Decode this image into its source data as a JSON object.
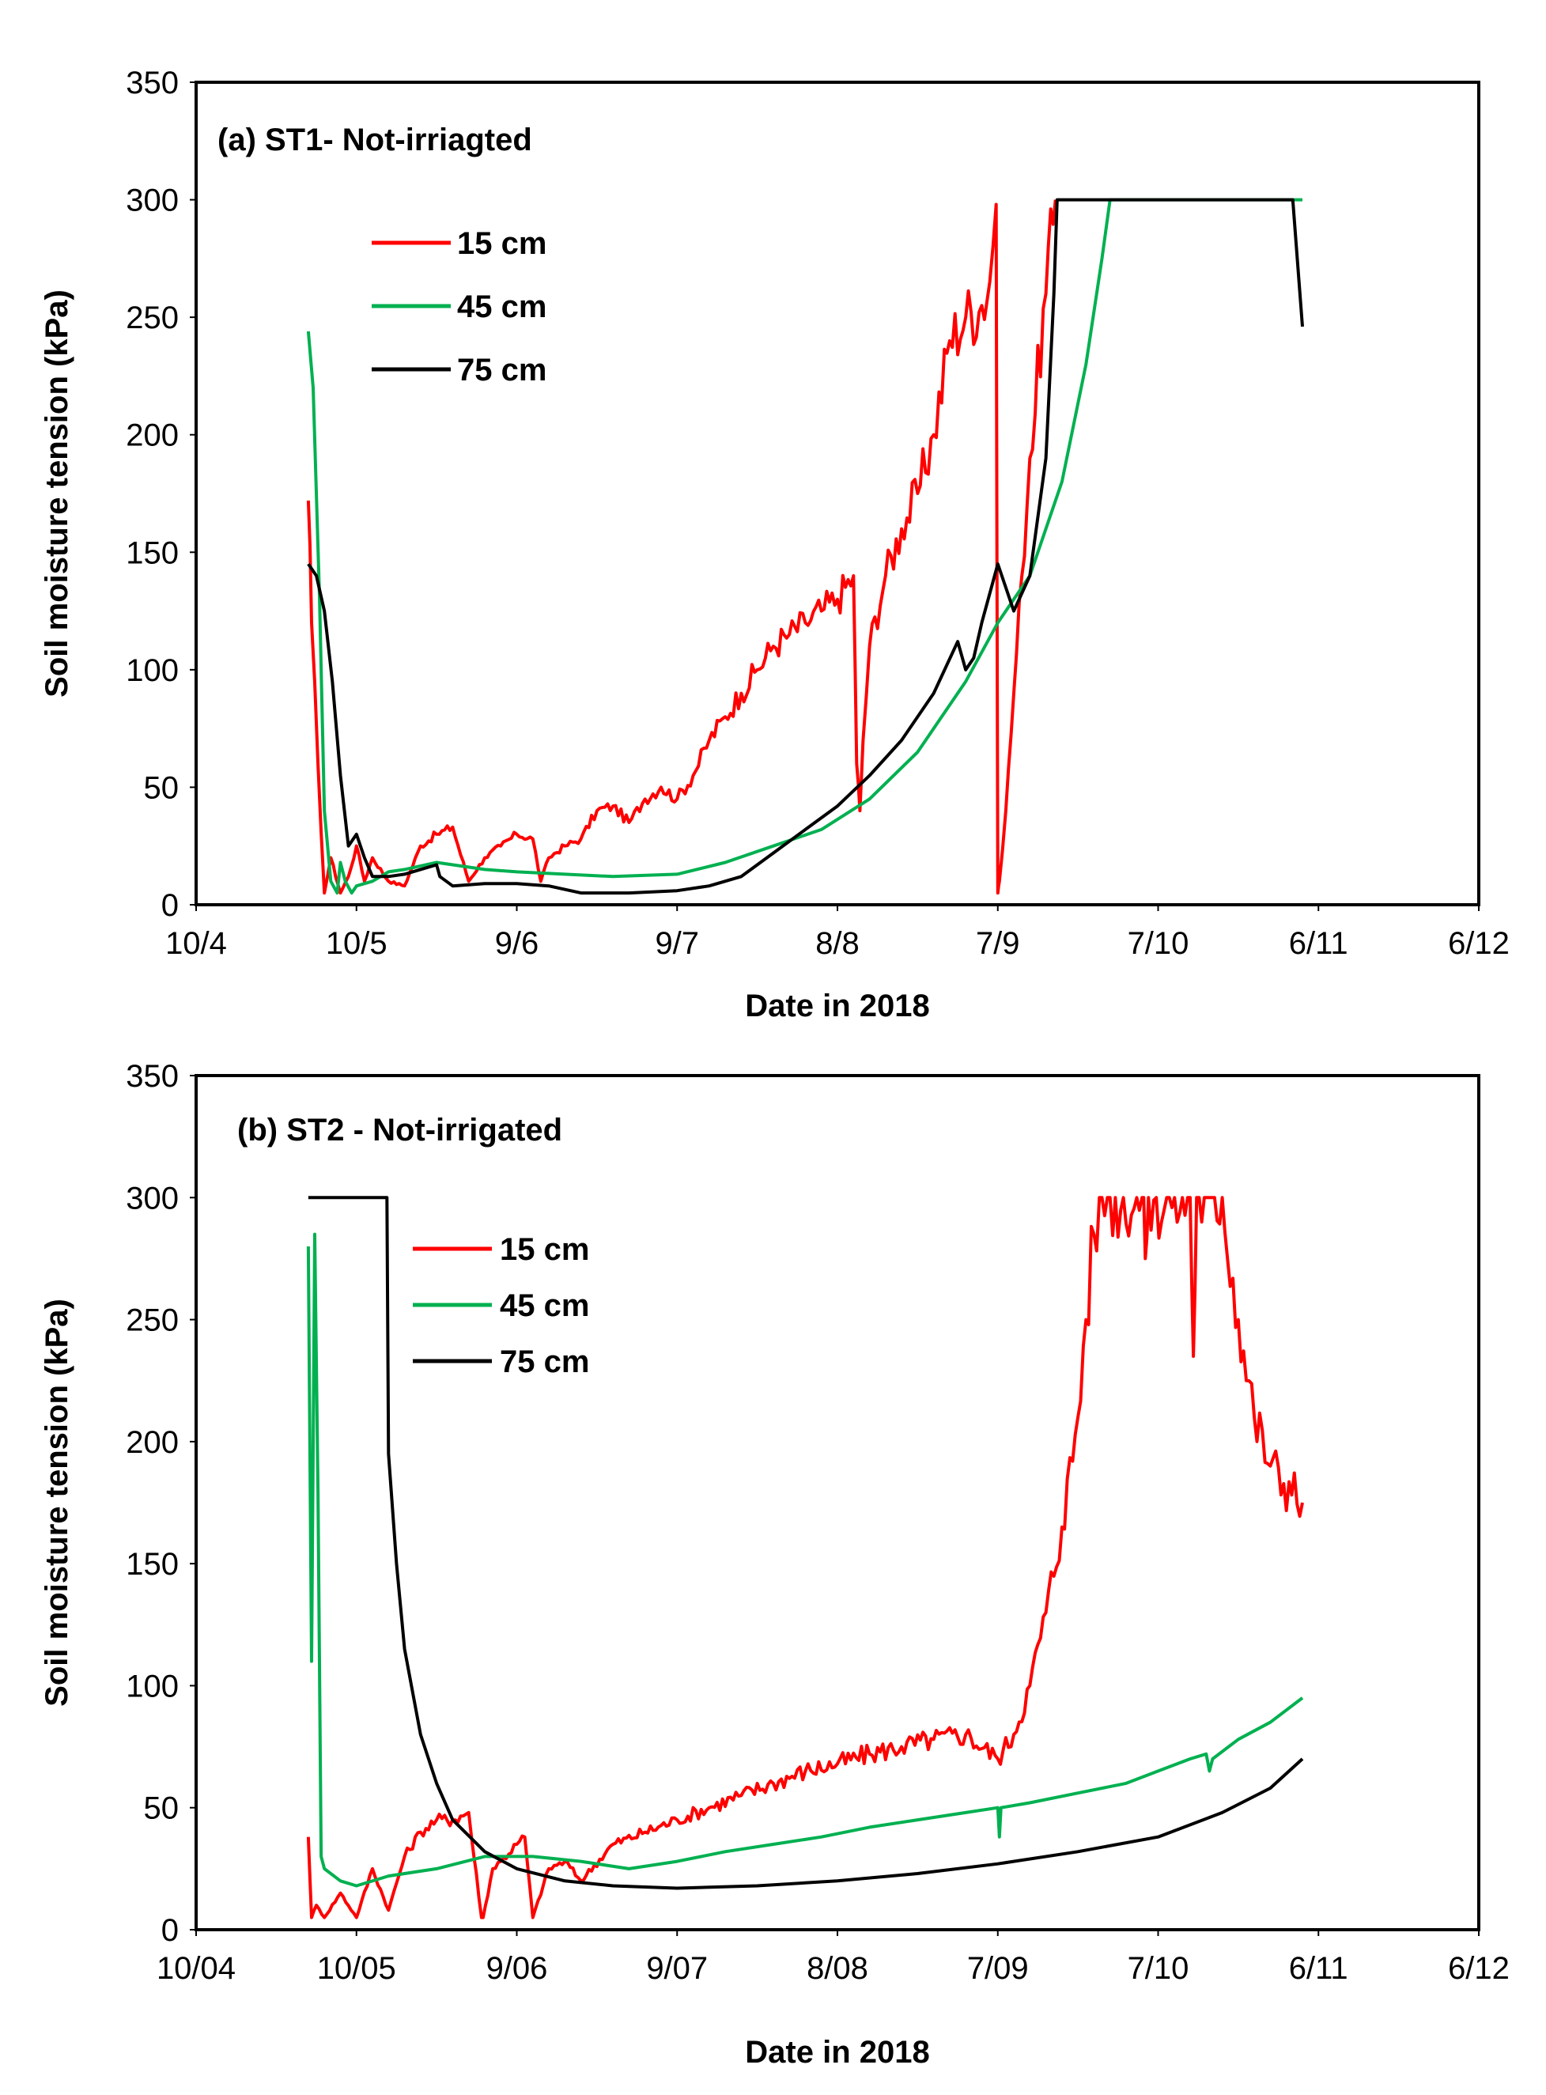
{
  "chart_data": [
    {
      "type": "line",
      "title": "(a) ST1- Not-irriagted",
      "xlabel": "Date in 2018",
      "ylabel": "Soil moisture tension (kPa)",
      "ylim": [
        0,
        350
      ],
      "yticks": [
        "0",
        "50",
        "100",
        "150",
        "200",
        "250",
        "300",
        "350"
      ],
      "xticks": [
        "10/4",
        "10/5",
        "9/6",
        "9/7",
        "8/8",
        "7/9",
        "7/10",
        "6/11",
        "6/12"
      ],
      "xlim": [
        0,
        8
      ],
      "legend_position": "upper-left",
      "series": [
        {
          "name": "15 cm",
          "color": "#ff0000",
          "noise": 0.05,
          "x": [
            0.7,
            0.72,
            0.76,
            0.8,
            0.84,
            0.9,
            0.95,
            1.0,
            1.05,
            1.1,
            1.2,
            1.3,
            1.4,
            1.5,
            1.6,
            1.7,
            1.8,
            1.9,
            2.0,
            2.1,
            2.15,
            2.2,
            2.3,
            2.4,
            2.5,
            2.6,
            2.7,
            2.8,
            2.9,
            3.0,
            3.1,
            3.2,
            3.3,
            3.4,
            3.5,
            3.6,
            3.7,
            3.8,
            3.9,
            4.0,
            4.1,
            4.12,
            4.14,
            4.16,
            4.2,
            4.3,
            4.4,
            4.5,
            4.6,
            4.7,
            4.8,
            4.9,
            4.95,
            4.99,
            5.0,
            5.01,
            5.05,
            5.1,
            5.15,
            5.2,
            5.3,
            5.36
          ],
          "y": [
            172,
            120,
            60,
            5,
            20,
            5,
            12,
            25,
            10,
            20,
            10,
            8,
            25,
            30,
            33,
            10,
            20,
            25,
            30,
            28,
            10,
            20,
            25,
            28,
            40,
            42,
            35,
            45,
            50,
            45,
            55,
            70,
            80,
            90,
            100,
            110,
            115,
            120,
            125,
            130,
            140,
            60,
            40,
            70,
            110,
            140,
            160,
            175,
            200,
            240,
            250,
            255,
            265,
            298,
            5,
            10,
            40,
            90,
            140,
            190,
            260,
            300
          ]
        },
        {
          "name": "45 cm",
          "color": "#00b050",
          "noise": 0,
          "x": [
            0.7,
            0.73,
            0.77,
            0.8,
            0.84,
            0.88,
            0.9,
            0.93,
            0.97,
            1.0,
            1.1,
            1.2,
            1.3,
            1.5,
            1.8,
            2.0,
            2.3,
            2.6,
            3.0,
            3.3,
            3.6,
            3.9,
            4.2,
            4.5,
            4.8,
            5.0,
            5.2,
            5.4,
            5.55,
            5.65,
            5.7,
            6.9
          ],
          "y": [
            244,
            220,
            130,
            40,
            10,
            5,
            18,
            10,
            5,
            8,
            10,
            14,
            15,
            18,
            15,
            14,
            13,
            12,
            13,
            18,
            25,
            32,
            45,
            65,
            95,
            120,
            140,
            180,
            230,
            275,
            300,
            300
          ]
        },
        {
          "name": "75 cm",
          "color": "#000000",
          "noise": 0,
          "x": [
            0.7,
            0.75,
            0.8,
            0.85,
            0.9,
            0.95,
            1.0,
            1.05,
            1.1,
            1.2,
            1.3,
            1.4,
            1.5,
            1.52,
            1.6,
            1.8,
            2.0,
            2.2,
            2.4,
            2.7,
            3.0,
            3.2,
            3.4,
            3.6,
            3.8,
            4.0,
            4.2,
            4.4,
            4.6,
            4.75,
            4.8,
            4.85,
            4.9,
            5.0,
            5.05,
            5.1,
            5.2,
            5.3,
            5.35,
            5.37,
            6.84,
            6.9
          ],
          "y": [
            145,
            140,
            125,
            95,
            55,
            25,
            30,
            20,
            12,
            12,
            13,
            15,
            17,
            12,
            8,
            9,
            9,
            8,
            5,
            5,
            6,
            8,
            12,
            22,
            32,
            42,
            55,
            70,
            90,
            112,
            100,
            105,
            120,
            145,
            135,
            125,
            140,
            190,
            260,
            300,
            300,
            246
          ]
        }
      ]
    },
    {
      "type": "line",
      "title": "(b) ST2 - Not-irrigated",
      "xlabel": "Date in 2018",
      "ylabel": "Soil moisture tension (kPa)",
      "ylim": [
        0,
        350
      ],
      "yticks": [
        "0",
        "50",
        "100",
        "150",
        "200",
        "250",
        "300",
        "350"
      ],
      "xticks": [
        "10/04",
        "10/05",
        "9/06",
        "9/07",
        "8/08",
        "7/09",
        "7/10",
        "6/11",
        "6/12"
      ],
      "xlim": [
        0,
        8
      ],
      "legend_position": "upper-left",
      "series": [
        {
          "name": "15 cm",
          "color": "#ff0000",
          "noise": 0.05,
          "x": [
            0.7,
            0.72,
            0.75,
            0.8,
            0.9,
            1.0,
            1.1,
            1.2,
            1.3,
            1.4,
            1.5,
            1.6,
            1.7,
            1.78,
            1.79,
            1.85,
            1.9,
            2.0,
            2.05,
            2.1,
            2.2,
            2.3,
            2.4,
            2.6,
            2.8,
            3.0,
            3.2,
            3.4,
            3.6,
            3.8,
            4.0,
            4.2,
            4.4,
            4.6,
            4.8,
            5.0,
            5.1,
            5.2,
            5.3,
            5.4,
            5.5,
            5.55,
            5.6,
            5.65,
            5.7,
            5.9,
            5.92,
            5.94,
            6.2,
            6.22,
            6.24,
            6.4,
            6.5,
            6.6,
            6.7,
            6.9
          ],
          "y": [
            38,
            5,
            10,
            5,
            15,
            5,
            25,
            8,
            30,
            40,
            45,
            45,
            48,
            5,
            5,
            25,
            28,
            35,
            38,
            5,
            25,
            28,
            20,
            35,
            40,
            45,
            50,
            55,
            60,
            65,
            68,
            72,
            75,
            78,
            80,
            70,
            80,
            100,
            130,
            165,
            210,
            250,
            285,
            300,
            300,
            300,
            275,
            300,
            300,
            235,
            300,
            300,
            250,
            210,
            190,
            175
          ]
        },
        {
          "name": "45 cm",
          "color": "#00b050",
          "noise": 0,
          "x": [
            0.7,
            0.72,
            0.74,
            0.76,
            0.78,
            0.8,
            0.9,
            1.0,
            1.2,
            1.5,
            1.8,
            2.1,
            2.4,
            2.7,
            3.0,
            3.3,
            3.6,
            3.9,
            4.2,
            4.5,
            4.8,
            5.0,
            5.01,
            5.02,
            5.2,
            5.5,
            5.8,
            6.0,
            6.2,
            6.3,
            6.32,
            6.34,
            6.5,
            6.7,
            6.9
          ],
          "y": [
            280,
            110,
            285,
            180,
            30,
            25,
            20,
            18,
            22,
            25,
            30,
            30,
            28,
            25,
            28,
            32,
            35,
            38,
            42,
            45,
            48,
            50,
            38,
            50,
            52,
            56,
            60,
            65,
            70,
            72,
            65,
            70,
            78,
            85,
            95
          ]
        },
        {
          "name": "75 cm",
          "color": "#000000",
          "noise": 0,
          "x": [
            0.7,
            1.19,
            1.2,
            1.25,
            1.3,
            1.4,
            1.5,
            1.6,
            1.8,
            2.0,
            2.3,
            2.6,
            3.0,
            3.5,
            4.0,
            4.5,
            5.0,
            5.5,
            6.0,
            6.4,
            6.7,
            6.9
          ],
          "y": [
            300,
            300,
            195,
            150,
            115,
            80,
            60,
            45,
            32,
            25,
            20,
            18,
            17,
            18,
            20,
            23,
            27,
            32,
            38,
            48,
            58,
            70
          ]
        }
      ]
    }
  ]
}
